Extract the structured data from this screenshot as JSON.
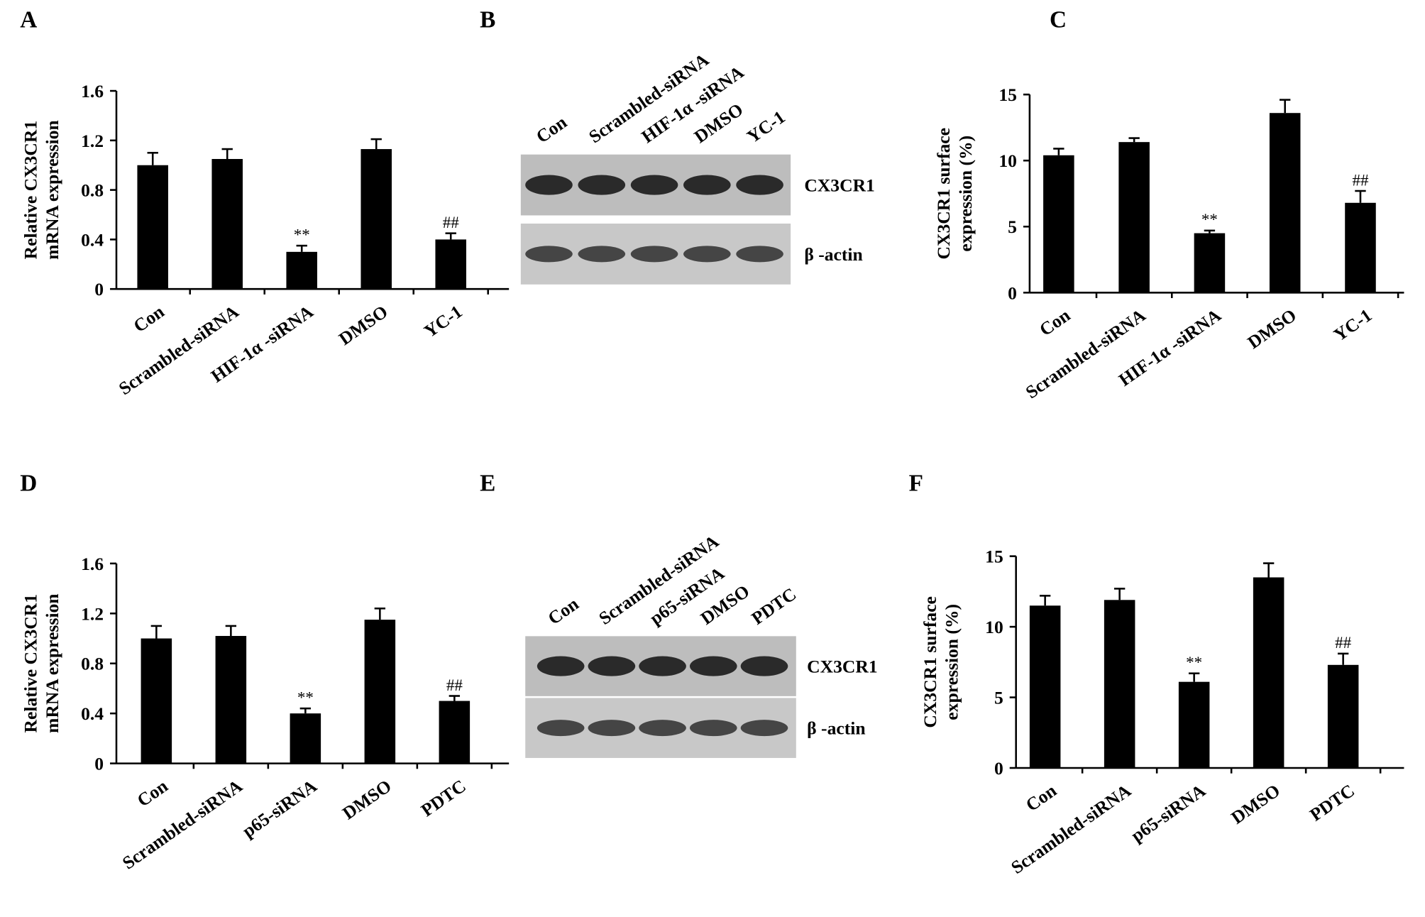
{
  "chart_data": [
    {
      "type": "bar",
      "panel": "A",
      "ylabel": [
        "Relative CX3CR1",
        "mRNA expression"
      ],
      "categories": [
        "Con",
        "Scrambled-siRNA",
        "HIF-1α -siRNA",
        "DMSO",
        "YC-1"
      ],
      "values": [
        1.0,
        1.05,
        0.3,
        1.13,
        0.4
      ],
      "errors": [
        0.1,
        0.08,
        0.05,
        0.08,
        0.05
      ],
      "annotations": [
        null,
        null,
        "**",
        null,
        "##"
      ],
      "color": "#000000",
      "ylim": [
        0,
        1.6
      ],
      "yticks": [
        0,
        0.4,
        0.8,
        1.2,
        1.6
      ]
    },
    {
      "type": "blot",
      "panel": "B",
      "lanes": [
        "Con",
        "Scrambled-siRNA",
        "HIF-1α -siRNA",
        "DMSO",
        "YC-1"
      ],
      "bands": [
        "CX3CR1",
        "β -actin"
      ]
    },
    {
      "type": "bar",
      "panel": "C",
      "ylabel": [
        "CX3CR1 surface",
        "expression (%)"
      ],
      "categories": [
        "Con",
        "Scrambled-siRNA",
        "HIF-1α -siRNA",
        "DMSO",
        "YC-1"
      ],
      "values": [
        10.4,
        11.4,
        4.5,
        13.6,
        6.8
      ],
      "errors": [
        0.5,
        0.3,
        0.2,
        1.0,
        0.9
      ],
      "annotations": [
        null,
        null,
        "**",
        null,
        "##"
      ],
      "color": "#000000",
      "ylim": [
        0,
        15
      ],
      "yticks": [
        0,
        5,
        10,
        15
      ]
    },
    {
      "type": "bar",
      "panel": "D",
      "ylabel": [
        "Relative CX3CR1",
        "mRNA expression"
      ],
      "categories": [
        "Con",
        "Scrambled-siRNA",
        "p65-siRNA",
        "DMSO",
        "PDTC"
      ],
      "values": [
        1.0,
        1.02,
        0.4,
        1.15,
        0.5
      ],
      "errors": [
        0.1,
        0.08,
        0.04,
        0.09,
        0.04
      ],
      "annotations": [
        null,
        null,
        "**",
        null,
        "##"
      ],
      "color": "#000000",
      "ylim": [
        0,
        1.6
      ],
      "yticks": [
        0,
        0.4,
        0.8,
        1.2,
        1.6
      ]
    },
    {
      "type": "blot",
      "panel": "E",
      "lanes": [
        "Con",
        "Scrambled-siRNA",
        "p65-siRNA",
        "DMSO",
        "PDTC"
      ],
      "bands": [
        "CX3CR1",
        "β -actin"
      ]
    },
    {
      "type": "bar",
      "panel": "F",
      "ylabel": [
        "CX3CR1 surface",
        "expression (%)"
      ],
      "categories": [
        "Con",
        "Scrambled-siRNA",
        "p65-siRNA",
        "DMSO",
        "PDTC"
      ],
      "values": [
        11.5,
        11.9,
        6.1,
        13.5,
        7.3
      ],
      "errors": [
        0.7,
        0.8,
        0.6,
        1.0,
        0.8
      ],
      "annotations": [
        null,
        null,
        "**",
        null,
        "##"
      ],
      "color": "#000000",
      "ylim": [
        0,
        15
      ],
      "yticks": [
        0,
        5,
        10,
        15
      ]
    }
  ]
}
